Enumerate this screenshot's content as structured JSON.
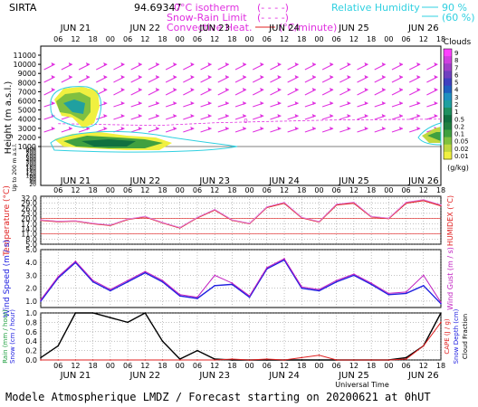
{
  "header": {
    "site": "SIRTA",
    "coords": "94.69347",
    "legend_isotherm": "0°C isotherm",
    "legend_isotherm_sym": "(- - - -)",
    "legend_snow_rain": "Snow-Rain Limit",
    "legend_snow_rain_sym": "(- - - -)",
    "legend_convective": "Convective Heat.",
    "legend_convective_unit": "(°C/minute)",
    "legend_rh": "Relative Humidity",
    "legend_rh_90": "90 %",
    "legend_rh_60": "(60 %)"
  },
  "footer": {
    "text": "Modele Atmospherique LMDZ / Forecast starting on 20200621 at 0hUT"
  },
  "chart_data": [
    {
      "type": "heatmap",
      "panel": "clouds",
      "ylabel": "Height (m a.s.l.)",
      "ylabel_low": "Up to 200 m a.s.l.",
      "y_ticks_upper": [
        11000,
        10000,
        9000,
        8000,
        7000,
        6000,
        5000,
        4000,
        3000,
        2000,
        1000
      ],
      "y_ticks_lower": [
        900,
        800,
        700,
        600,
        500,
        400,
        300,
        200,
        180,
        160,
        140,
        120,
        100,
        80,
        60,
        40,
        20
      ],
      "day_labels": [
        "JUN 21",
        "JUN 22",
        "JUN 23",
        "JUN 24",
        "JUN 25",
        "JUN 26"
      ],
      "hour_labels": [
        "06",
        "12",
        "18",
        "00"
      ],
      "colorbar_title": "Clouds",
      "colorbar_unit": "(g/kg)",
      "colorbar_ticks": [
        "9",
        "8",
        "7",
        "6",
        "5",
        "4",
        "3",
        "2",
        "1",
        "0.5",
        "0.2",
        "0.1",
        "0.05",
        "0.02",
        "0.01"
      ],
      "colorbar_colors": [
        "#ff40ff",
        "#d040e0",
        "#a040c8",
        "#7040c0",
        "#4040c0",
        "#2060c0",
        "#2090c0",
        "#20a0a0",
        "#209060",
        "#107040",
        "#208040",
        "#40a040",
        "#80c040",
        "#c0d840",
        "#f0f040"
      ],
      "isotherm_label": "0"
    },
    {
      "type": "line",
      "panel": "temperature",
      "ylabel": "Temperature (°C)",
      "ylabel_right": "HUMIDEX (°C)",
      "y_ticks": [
        32.0,
        29.0,
        26.0,
        23.0,
        20.0,
        17.0,
        14.0,
        11.0,
        8.0,
        5.0
      ],
      "ylim": [
        5.0,
        33.0
      ],
      "x_hours": [
        0,
        6,
        12,
        18,
        24,
        30,
        36,
        42,
        48,
        54,
        60,
        66,
        72,
        78,
        84,
        90,
        96,
        102,
        108,
        114,
        120,
        126,
        132,
        138
      ],
      "series": [
        {
          "name": "Temperature",
          "color": "#e02020",
          "values": [
            19.0,
            18.2,
            18.5,
            17.0,
            16.0,
            19.5,
            21.0,
            17.5,
            14.5,
            20.5,
            25.0,
            19.0,
            17.0,
            26.5,
            29.0,
            20.5,
            18.0,
            28.0,
            29.0,
            21.0,
            20.0,
            29.0,
            30.5,
            27.5
          ]
        },
        {
          "name": "Humidex",
          "color": "#e080e0",
          "values": [
            19.2,
            18.4,
            18.7,
            17.2,
            16.2,
            19.7,
            21.2,
            17.7,
            14.7,
            20.7,
            25.3,
            19.2,
            17.2,
            26.8,
            29.4,
            20.7,
            18.2,
            28.4,
            29.5,
            21.2,
            20.2,
            29.5,
            31.0,
            28.0
          ]
        }
      ]
    },
    {
      "type": "line",
      "panel": "wind",
      "ylabel": "Wind Speed (m / s)",
      "ylabel_right": "Wind Gust (m / s)",
      "y_ticks": [
        5.0,
        4.0,
        3.0,
        2.0,
        1.0
      ],
      "ylim": [
        0.5,
        5.0
      ],
      "x_hours": [
        0,
        6,
        12,
        18,
        24,
        30,
        36,
        42,
        48,
        54,
        60,
        66,
        72,
        78,
        84,
        90,
        96,
        102,
        108,
        114,
        120,
        126,
        132,
        138
      ],
      "series": [
        {
          "name": "Wind Speed",
          "color": "#2020e0",
          "values": [
            1.0,
            2.8,
            4.0,
            2.5,
            1.8,
            2.5,
            3.2,
            2.5,
            1.4,
            1.2,
            2.2,
            2.3,
            1.3,
            3.5,
            4.2,
            2.0,
            1.8,
            2.5,
            3.0,
            2.3,
            1.5,
            1.6,
            2.2,
            0.8
          ]
        },
        {
          "name": "Wind Gust",
          "color": "#c020c0",
          "values": [
            1.1,
            2.9,
            4.1,
            2.6,
            1.9,
            2.6,
            3.3,
            2.6,
            1.5,
            1.3,
            3.0,
            2.4,
            1.4,
            3.6,
            4.3,
            2.1,
            1.9,
            2.6,
            3.1,
            2.4,
            1.6,
            1.7,
            3.0,
            0.9
          ]
        }
      ]
    },
    {
      "type": "line",
      "panel": "precip",
      "ylabel": "Rain (mm / hour) Snow (cm / hour)",
      "ylabel_right": "CAPE (J / g) Snow Depth (cm) Cloud Fraction",
      "xlabel": "Universal Time",
      "y_ticks": [
        1.0,
        0.8,
        0.6,
        0.4,
        0.2,
        0.0
      ],
      "ylim": [
        0.0,
        1.0
      ],
      "x_hours": [
        0,
        6,
        12,
        18,
        24,
        30,
        36,
        42,
        48,
        54,
        60,
        66,
        72,
        78,
        84,
        90,
        96,
        102,
        108,
        114,
        120,
        126,
        132,
        138
      ],
      "series": [
        {
          "name": "Cloud Fraction",
          "color": "#000000",
          "values": [
            0.05,
            0.3,
            1.0,
            1.0,
            0.9,
            0.8,
            1.0,
            0.4,
            0.02,
            0.2,
            0.02,
            0.0,
            0.0,
            0.0,
            0.0,
            0.0,
            0.0,
            0.0,
            0.0,
            0.0,
            0.0,
            0.05,
            0.3,
            1.0
          ]
        },
        {
          "name": "CAPE",
          "color": "#e02020",
          "values": [
            0.0,
            0.0,
            0.0,
            0.0,
            0.0,
            0.0,
            0.0,
            0.0,
            0.0,
            0.0,
            0.0,
            0.02,
            0.0,
            0.02,
            0.0,
            0.05,
            0.1,
            0.0,
            0.0,
            0.0,
            0.0,
            0.02,
            0.3,
            0.8
          ]
        }
      ]
    }
  ]
}
